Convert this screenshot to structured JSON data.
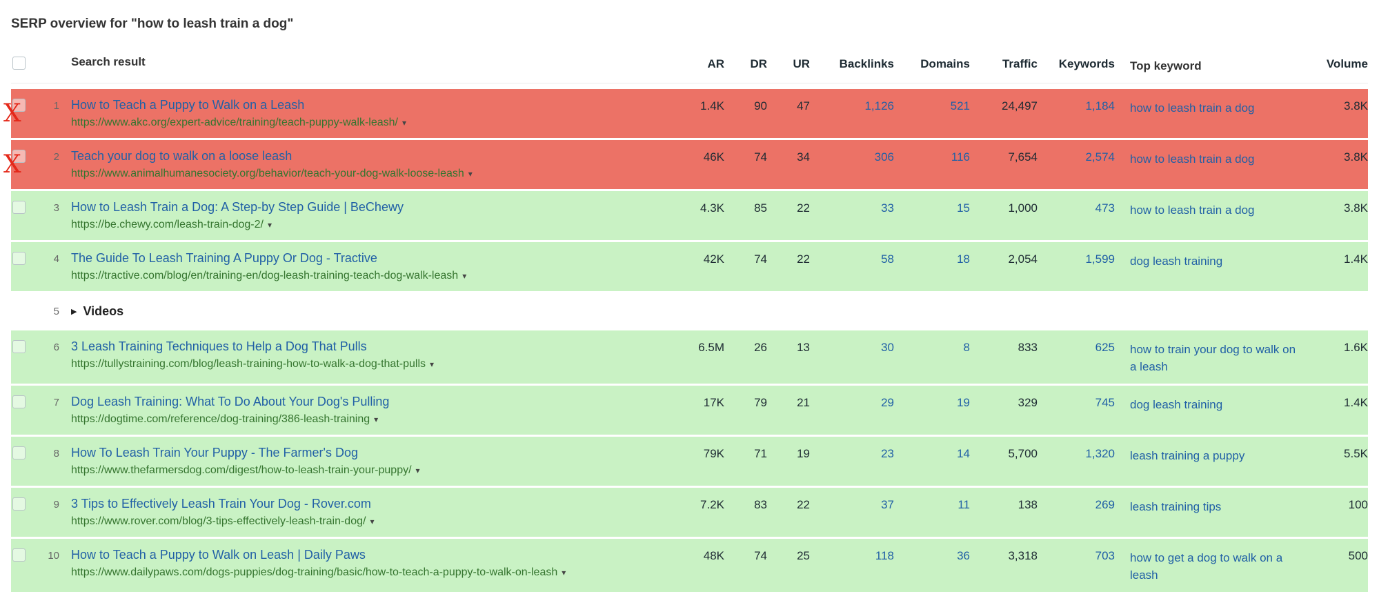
{
  "page": {
    "title": "SERP overview for \"how to leash train a dog\""
  },
  "icons": {
    "x_mark": "X",
    "expand_triangle": "▶",
    "url_caret": "▾"
  },
  "colors": {
    "rejected_row_bg": "#ec7266",
    "accepted_row_bg": "#c9f2c4",
    "link_blue": "#2160a6",
    "url_green": "#35752f",
    "x_mark_red": "#e42819",
    "header_text": "#333333"
  },
  "table": {
    "headers": [
      "Search result",
      "AR",
      "DR",
      "UR",
      "Backlinks",
      "Domains",
      "Traffic",
      "Keywords",
      "Top keyword",
      "Volume"
    ],
    "rows": [
      {
        "rank": "1",
        "row_color": "red",
        "marked": true,
        "title": "How to Teach a Puppy to Walk on a Leash",
        "url": "https://www.akc.org/expert-advice/training/teach-puppy-walk-leash/",
        "ar": "1.4K",
        "dr": "90",
        "ur": "47",
        "backlinks": "1,126",
        "domains": "521",
        "traffic": "24,497",
        "keywords": "1,184",
        "top_keyword": "how to leash train a dog",
        "volume": "3.8K"
      },
      {
        "rank": "2",
        "row_color": "red",
        "marked": true,
        "title": "Teach your dog to walk on a loose leash",
        "url": "https://www.animalhumanesociety.org/behavior/teach-your-dog-walk-loose-leash",
        "ar": "46K",
        "dr": "74",
        "ur": "34",
        "backlinks": "306",
        "domains": "116",
        "traffic": "7,654",
        "keywords": "2,574",
        "top_keyword": "how to leash train a dog",
        "volume": "3.8K"
      },
      {
        "rank": "3",
        "row_color": "green",
        "title": "How to Leash Train a Dog: A Step-by Step Guide | BeChewy",
        "url": "https://be.chewy.com/leash-train-dog-2/",
        "ar": "4.3K",
        "dr": "85",
        "ur": "22",
        "backlinks": "33",
        "domains": "15",
        "traffic": "1,000",
        "keywords": "473",
        "top_keyword": "how to leash train a dog",
        "volume": "3.8K"
      },
      {
        "rank": "4",
        "row_color": "green",
        "title": "The Guide To Leash Training A Puppy Or Dog - Tractive",
        "url": "https://tractive.com/blog/en/training-en/dog-leash-training-teach-dog-walk-leash",
        "ar": "42K",
        "dr": "74",
        "ur": "22",
        "backlinks": "58",
        "domains": "18",
        "traffic": "2,054",
        "keywords": "1,599",
        "top_keyword": "dog leash training",
        "volume": "1.4K"
      },
      {
        "rank": "5",
        "type": "videos",
        "label": "Videos"
      },
      {
        "rank": "6",
        "row_color": "green",
        "title": "3 Leash Training Techniques to Help a Dog That Pulls",
        "url": "https://tullystraining.com/blog/leash-training-how-to-walk-a-dog-that-pulls",
        "ar": "6.5M",
        "dr": "26",
        "ur": "13",
        "backlinks": "30",
        "domains": "8",
        "traffic": "833",
        "keywords": "625",
        "top_keyword": "how to train your dog to walk on a leash",
        "volume": "1.6K"
      },
      {
        "rank": "7",
        "row_color": "green",
        "title": "Dog Leash Training: What To Do About Your Dog's Pulling",
        "url": "https://dogtime.com/reference/dog-training/386-leash-training",
        "ar": "17K",
        "dr": "79",
        "ur": "21",
        "backlinks": "29",
        "domains": "19",
        "traffic": "329",
        "keywords": "745",
        "top_keyword": "dog leash training",
        "volume": "1.4K"
      },
      {
        "rank": "8",
        "row_color": "green",
        "title": "How To Leash Train Your Puppy - The Farmer's Dog",
        "url": "https://www.thefarmersdog.com/digest/how-to-leash-train-your-puppy/",
        "ar": "79K",
        "dr": "71",
        "ur": "19",
        "backlinks": "23",
        "domains": "14",
        "traffic": "5,700",
        "keywords": "1,320",
        "top_keyword": "leash training a puppy",
        "volume": "5.5K"
      },
      {
        "rank": "9",
        "row_color": "green",
        "title": "3 Tips to Effectively Leash Train Your Dog - Rover.com",
        "url": "https://www.rover.com/blog/3-tips-effectively-leash-train-dog/",
        "ar": "7.2K",
        "dr": "83",
        "ur": "22",
        "backlinks": "37",
        "domains": "11",
        "traffic": "138",
        "keywords": "269",
        "top_keyword": "leash training tips",
        "volume": "100"
      },
      {
        "rank": "10",
        "row_color": "green",
        "title": "How to Teach a Puppy to Walk on Leash | Daily Paws",
        "url": "https://www.dailypaws.com/dogs-puppies/dog-training/basic/how-to-teach-a-puppy-to-walk-on-leash",
        "ar": "48K",
        "dr": "74",
        "ur": "25",
        "backlinks": "118",
        "domains": "36",
        "traffic": "3,318",
        "keywords": "703",
        "top_keyword": "how to get a dog to walk on a leash",
        "volume": "500"
      }
    ]
  }
}
